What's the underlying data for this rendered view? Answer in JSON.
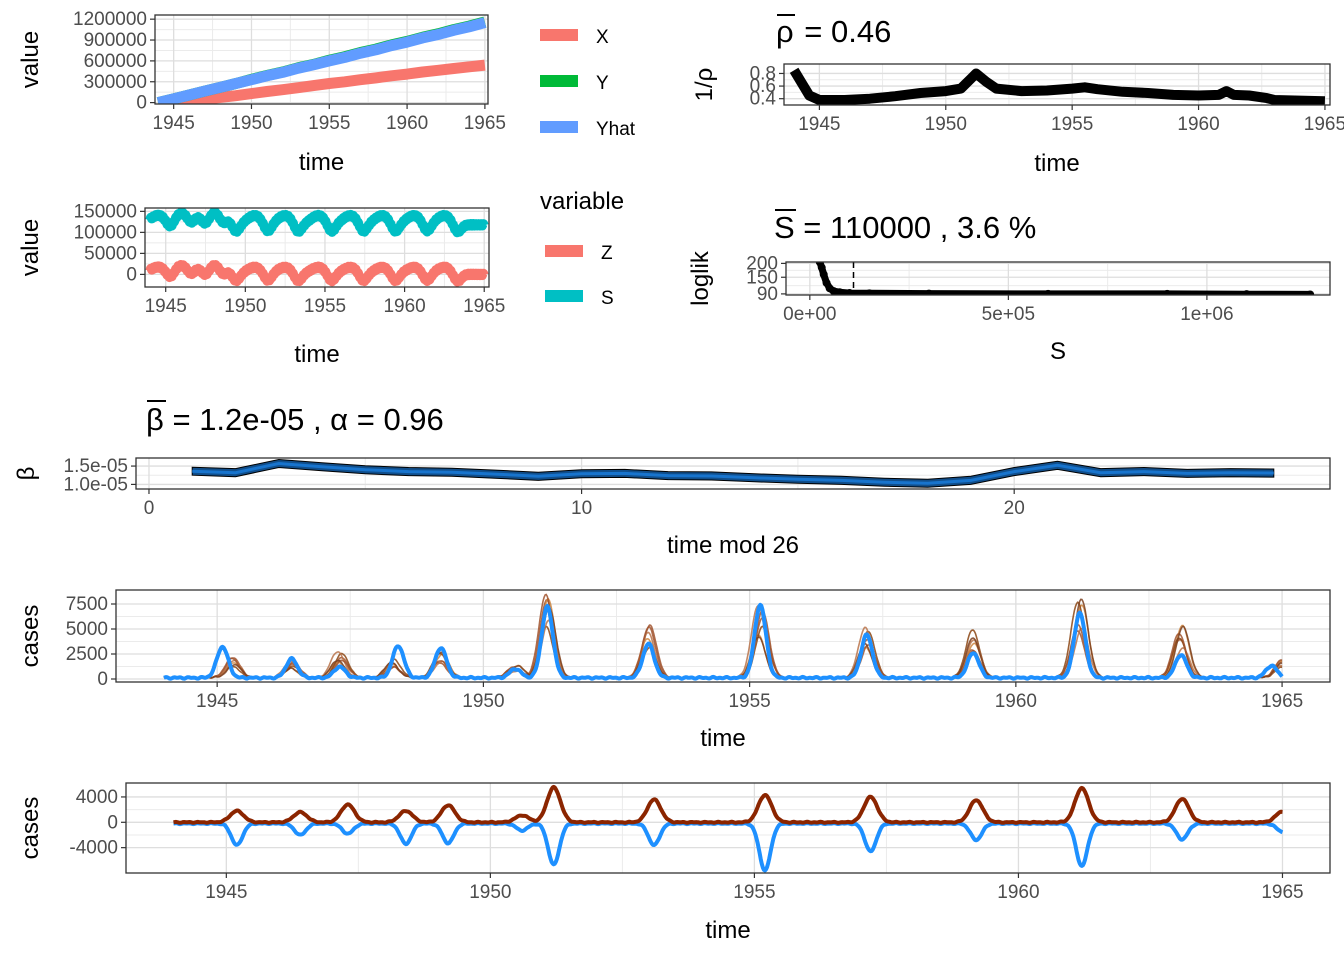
{
  "colors": {
    "X": "#F8766D",
    "Y": "#00BA38",
    "Yhat": "#619CFF",
    "Z": "#F8766D",
    "S": "#00BFC4",
    "sim": "#A0522D",
    "sim_dark": "#8B2500",
    "obs": "#1E90FF",
    "beta_fill": "#104E8B",
    "beta_line": "#1874CD",
    "black": "#000000"
  },
  "chart_data": [
    {
      "id": "cumulative",
      "type": "line",
      "xlabel": "time",
      "ylabel": "value",
      "xlim": [
        1943.8,
        1965.2
      ],
      "ylim": [
        -20000,
        1260000
      ],
      "xticks": [
        1945,
        1950,
        1955,
        1960,
        1965
      ],
      "yticks": [
        0,
        300000,
        600000,
        900000,
        1200000
      ],
      "ytick_labels": [
        "0",
        "300000",
        "600000",
        "900000",
        "1200000"
      ],
      "series": [
        {
          "name": "X",
          "x": [
            1945,
            1946,
            1947,
            1948,
            1949,
            1950,
            1951,
            1952,
            1953,
            1954,
            1955,
            1956,
            1957,
            1958,
            1959,
            1960,
            1961,
            1962,
            1963,
            1964,
            1965
          ],
          "values": [
            0,
            20000,
            45000,
            75000,
            100000,
            130000,
            160000,
            185000,
            215000,
            245000,
            275000,
            300000,
            330000,
            355000,
            385000,
            410000,
            440000,
            465000,
            490000,
            515000,
            540000
          ]
        },
        {
          "name": "Y",
          "x": [
            1944,
            1945,
            1946,
            1947,
            1948,
            1949,
            1950,
            1951,
            1952,
            1953,
            1954,
            1955,
            1956,
            1957,
            1958,
            1959,
            1960,
            1961,
            1962,
            1963,
            1964,
            1965
          ],
          "values": [
            0,
            55000,
            110000,
            165000,
            220000,
            275000,
            335000,
            390000,
            440000,
            500000,
            550000,
            610000,
            660000,
            720000,
            770000,
            830000,
            880000,
            940000,
            990000,
            1050000,
            1100000,
            1160000
          ]
        },
        {
          "name": "Yhat",
          "x": [
            1944,
            1945,
            1946,
            1947,
            1948,
            1949,
            1950,
            1951,
            1952,
            1953,
            1954,
            1955,
            1956,
            1957,
            1958,
            1959,
            1960,
            1961,
            1962,
            1963,
            1964,
            1965
          ],
          "values": [
            0,
            55000,
            110000,
            165000,
            220000,
            275000,
            330000,
            385000,
            435000,
            495000,
            545000,
            600000,
            650000,
            710000,
            760000,
            820000,
            870000,
            930000,
            980000,
            1040000,
            1090000,
            1150000
          ]
        }
      ],
      "legend": [
        "X",
        "Y",
        "Yhat"
      ]
    },
    {
      "id": "rho",
      "type": "line",
      "title": "0.46",
      "xlabel": "time",
      "ylabel": "1/ρ",
      "xlim": [
        1943.6,
        1965.2
      ],
      "ylim": [
        0.3,
        0.95
      ],
      "xticks": [
        1945,
        1950,
        1955,
        1960,
        1965
      ],
      "yticks": [
        0.4,
        0.6,
        0.8
      ],
      "ytick_labels": [
        "0.4",
        "0.6",
        "0.8"
      ],
      "series": [
        {
          "x": [
            1944.0,
            1944.3,
            1944.6,
            1945.0,
            1946.0,
            1947.0,
            1948.0,
            1949.0,
            1950.0,
            1950.6,
            1951.0,
            1951.2,
            1951.6,
            1952.0,
            1953.0,
            1954.0,
            1955.0,
            1955.5,
            1956.0,
            1957.0,
            1958.0,
            1959.0,
            1960.0,
            1960.8,
            1961.1,
            1961.4,
            1962.0,
            1962.7,
            1963.0,
            1964.0,
            1965.0
          ],
          "values": [
            0.85,
            0.65,
            0.45,
            0.38,
            0.38,
            0.4,
            0.44,
            0.49,
            0.52,
            0.56,
            0.72,
            0.8,
            0.67,
            0.56,
            0.52,
            0.53,
            0.56,
            0.58,
            0.55,
            0.51,
            0.49,
            0.46,
            0.45,
            0.46,
            0.52,
            0.46,
            0.45,
            0.41,
            0.38,
            0.37,
            0.36
          ]
        }
      ]
    },
    {
      "id": "zs",
      "type": "line",
      "xlabel": "time",
      "ylabel": "value",
      "xlim": [
        1943.7,
        1965.3
      ],
      "ylim": [
        -30000,
        158000
      ],
      "xticks": [
        1945,
        1950,
        1955,
        1960,
        1965
      ],
      "yticks": [
        0,
        50000,
        100000,
        150000
      ],
      "ytick_labels": [
        "0",
        "50000",
        "100000",
        "150000"
      ],
      "legend_title": "variable",
      "legend": [
        "Z",
        "S"
      ],
      "epidemic_peaks": [
        1945.1,
        1946.4,
        1947.3,
        1948.4,
        1949.2,
        1951.2,
        1953.1,
        1955.2,
        1957.2,
        1959.2,
        1961.2,
        1963.1
      ]
    },
    {
      "id": "loglik",
      "type": "scatter",
      "title_value": "110000 , 3.6 %",
      "xlabel": "S",
      "ylabel": "loglik",
      "xlim": [
        -60000,
        1310000
      ],
      "ylim": [
        86,
        205
      ],
      "xticks": [
        0,
        500000,
        1000000
      ],
      "xtick_labels": [
        "0e+00",
        "5e+05",
        "1e+06"
      ],
      "yticks": [
        90,
        150,
        200
      ],
      "ytick_labels": [
        "90",
        "150",
        "200"
      ],
      "vline": 110000,
      "points": [
        [
          25000,
          205
        ],
        [
          30000,
          185
        ],
        [
          35000,
          160
        ],
        [
          42000,
          130
        ],
        [
          50000,
          110
        ],
        [
          60000,
          100
        ],
        [
          75000,
          96
        ],
        [
          100000,
          93
        ],
        [
          150000,
          92
        ],
        [
          300000,
          91
        ],
        [
          600000,
          90
        ],
        [
          900000,
          90
        ],
        [
          1100000,
          89
        ],
        [
          1260000,
          88
        ]
      ]
    },
    {
      "id": "beta",
      "type": "area",
      "title_beta": "1.2e-05",
      "title_alpha": "0.96",
      "xlabel": "time mod 26",
      "ylabel": "β",
      "xlim": [
        -0.3,
        27.3
      ],
      "ylim": [
        8.75e-06,
        1.72e-05
      ],
      "xticks": [
        0,
        10,
        20
      ],
      "yticks": [
        1e-05,
        1.5e-05
      ],
      "ytick_labels": [
        "1.0e-05",
        "1.5e-05"
      ],
      "x": [
        1,
        2,
        3,
        4,
        5,
        6,
        7,
        8,
        9,
        10,
        11,
        12,
        13,
        14,
        15,
        16,
        17,
        18,
        19,
        20,
        21,
        22,
        23,
        24,
        25,
        26
      ],
      "values": [
        1.36e-05,
        1.32e-05,
        1.57e-05,
        1.48e-05,
        1.4e-05,
        1.35e-05,
        1.33e-05,
        1.28e-05,
        1.22e-05,
        1.29e-05,
        1.3e-05,
        1.24e-05,
        1.23e-05,
        1.18e-05,
        1.14e-05,
        1.11e-05,
        1.06e-05,
        1.03e-05,
        1.11e-05,
        1.35e-05,
        1.52e-05,
        1.32e-05,
        1.35e-05,
        1.3e-05,
        1.32e-05,
        1.31e-05
      ],
      "band": 1.1e-06
    },
    {
      "id": "cases",
      "type": "line",
      "xlabel": "time",
      "ylabel": "cases",
      "xlim": [
        1943.1,
        1965.9
      ],
      "ylim": [
        -300,
        8900
      ],
      "xticks": [
        1945,
        1950,
        1955,
        1960,
        1965
      ],
      "yticks": [
        0,
        2500,
        5000,
        7500
      ],
      "ytick_labels": [
        "0",
        "2500",
        "5000",
        "7500"
      ],
      "series": [
        {
          "name": "observed",
          "peaks": [
            [
              1945.1,
              3100
            ],
            [
              1946.4,
              1900
            ],
            [
              1947.3,
              1100
            ],
            [
              1948.4,
              3200
            ],
            [
              1949.2,
              3000
            ],
            [
              1950.6,
              900
            ],
            [
              1951.2,
              7100
            ],
            [
              1953.1,
              3400
            ],
            [
              1955.2,
              7300
            ],
            [
              1957.2,
              4300
            ],
            [
              1959.2,
              2500
            ],
            [
              1961.2,
              6500
            ],
            [
              1963.1,
              2300
            ],
            [
              1964.8,
              1200
            ]
          ]
        },
        {
          "name": "simulated",
          "peaks": [
            [
              1945.3,
              2000
            ],
            [
              1946.4,
              1600
            ],
            [
              1947.3,
              2700
            ],
            [
              1948.3,
              1800
            ],
            [
              1949.2,
              2600
            ],
            [
              1950.6,
              1200
            ],
            [
              1951.2,
              8400
            ],
            [
              1953.1,
              5200
            ],
            [
              1955.2,
              7300
            ],
            [
              1957.2,
              5200
            ],
            [
              1959.2,
              4800
            ],
            [
              1961.2,
              8000
            ],
            [
              1963.1,
              5200
            ],
            [
              1965.0,
              1800
            ]
          ]
        }
      ]
    },
    {
      "id": "residual",
      "type": "line",
      "xlabel": "time",
      "ylabel": "cases",
      "xlim": [
        1943.1,
        1965.9
      ],
      "ylim": [
        -8000,
        6200
      ],
      "xticks": [
        1945,
        1950,
        1955,
        1960,
        1965
      ],
      "yticks": [
        -4000,
        0,
        4000
      ],
      "ytick_labels": [
        "-4000",
        "0",
        "4000"
      ],
      "series": [
        {
          "name": "positive",
          "peaks": [
            [
              1945.2,
              1800
            ],
            [
              1946.4,
              1600
            ],
            [
              1947.3,
              2800
            ],
            [
              1948.4,
              1800
            ],
            [
              1949.2,
              2700
            ],
            [
              1950.6,
              1100
            ],
            [
              1951.2,
              5500
            ],
            [
              1953.1,
              3600
            ],
            [
              1955.2,
              4300
            ],
            [
              1957.2,
              4000
            ],
            [
              1959.2,
              3500
            ],
            [
              1961.2,
              5400
            ],
            [
              1963.1,
              3700
            ],
            [
              1965.0,
              1700
            ]
          ]
        },
        {
          "name": "negative",
          "peaks": [
            [
              1945.2,
              -3400
            ],
            [
              1946.4,
              -1800
            ],
            [
              1947.3,
              -1600
            ],
            [
              1948.4,
              -3200
            ],
            [
              1949.2,
              -3100
            ],
            [
              1950.6,
              -1100
            ],
            [
              1951.2,
              -6500
            ],
            [
              1953.1,
              -3400
            ],
            [
              1955.2,
              -7400
            ],
            [
              1957.2,
              -4400
            ],
            [
              1959.2,
              -2600
            ],
            [
              1961.2,
              -6700
            ],
            [
              1963.1,
              -2500
            ],
            [
              1965.0,
              -1300
            ]
          ]
        }
      ]
    }
  ]
}
